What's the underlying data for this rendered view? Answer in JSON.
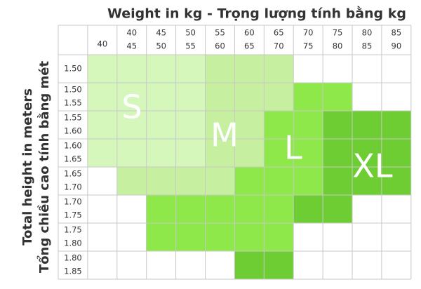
{
  "title": "Weight in kg - Trọng lượng tính bằng kg",
  "y_axis_title": [
    "Total height in meters",
    "Tổng chiều cao tính bằng mét"
  ],
  "columns": [
    [
      "40"
    ],
    [
      "40",
      "45"
    ],
    [
      "45",
      "50"
    ],
    [
      "50",
      "55"
    ],
    [
      "55",
      "60"
    ],
    [
      "60",
      "65"
    ],
    [
      "65",
      "70"
    ],
    [
      "70",
      "75"
    ],
    [
      "75",
      "80"
    ],
    [
      "80",
      "85"
    ],
    [
      "85",
      "90"
    ]
  ],
  "rows": [
    [
      "1.50"
    ],
    [
      "1.50",
      "1.55"
    ],
    [
      "1.55",
      "1.60"
    ],
    [
      "1.60",
      "1.65"
    ],
    [
      "1.65",
      "1.70"
    ],
    [
      "1.70",
      "1.75"
    ],
    [
      "1.75",
      "1.80"
    ],
    [
      "1.80",
      "1.85"
    ]
  ],
  "sizes": [
    "S",
    "M",
    "L",
    "XL"
  ]
}
